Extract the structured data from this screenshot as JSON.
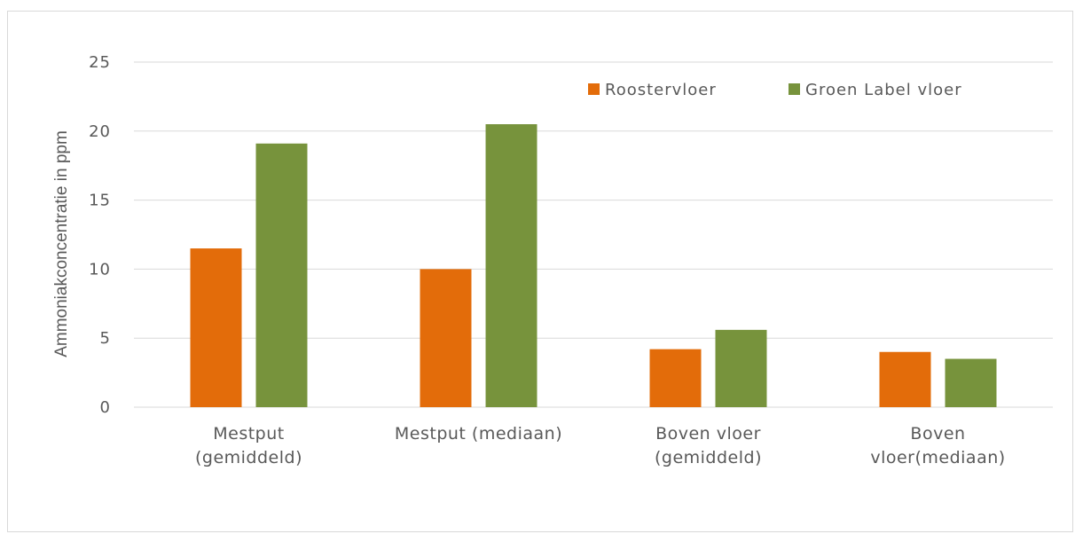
{
  "chart_data": {
    "type": "bar",
    "title": "",
    "xlabel": "",
    "ylabel": "Ammoniakconcentratie in ppm",
    "ylim": [
      0,
      25
    ],
    "yticks": [
      0,
      5,
      10,
      15,
      20,
      25
    ],
    "grid": true,
    "legend_position": "top-right",
    "categories": [
      [
        "Mestput",
        "(gemiddeld)"
      ],
      [
        "Mestput (mediaan)"
      ],
      [
        "Boven vloer",
        "(gemiddeld)"
      ],
      [
        "Boven",
        "vloer(mediaan)"
      ]
    ],
    "series": [
      {
        "name": "Roostervloer",
        "color": "#E36C0A",
        "values": [
          11.5,
          10.0,
          4.2,
          4.0
        ]
      },
      {
        "name": "Groen Label vloer",
        "color": "#77933C",
        "values": [
          19.1,
          20.5,
          5.6,
          3.5
        ]
      }
    ]
  }
}
